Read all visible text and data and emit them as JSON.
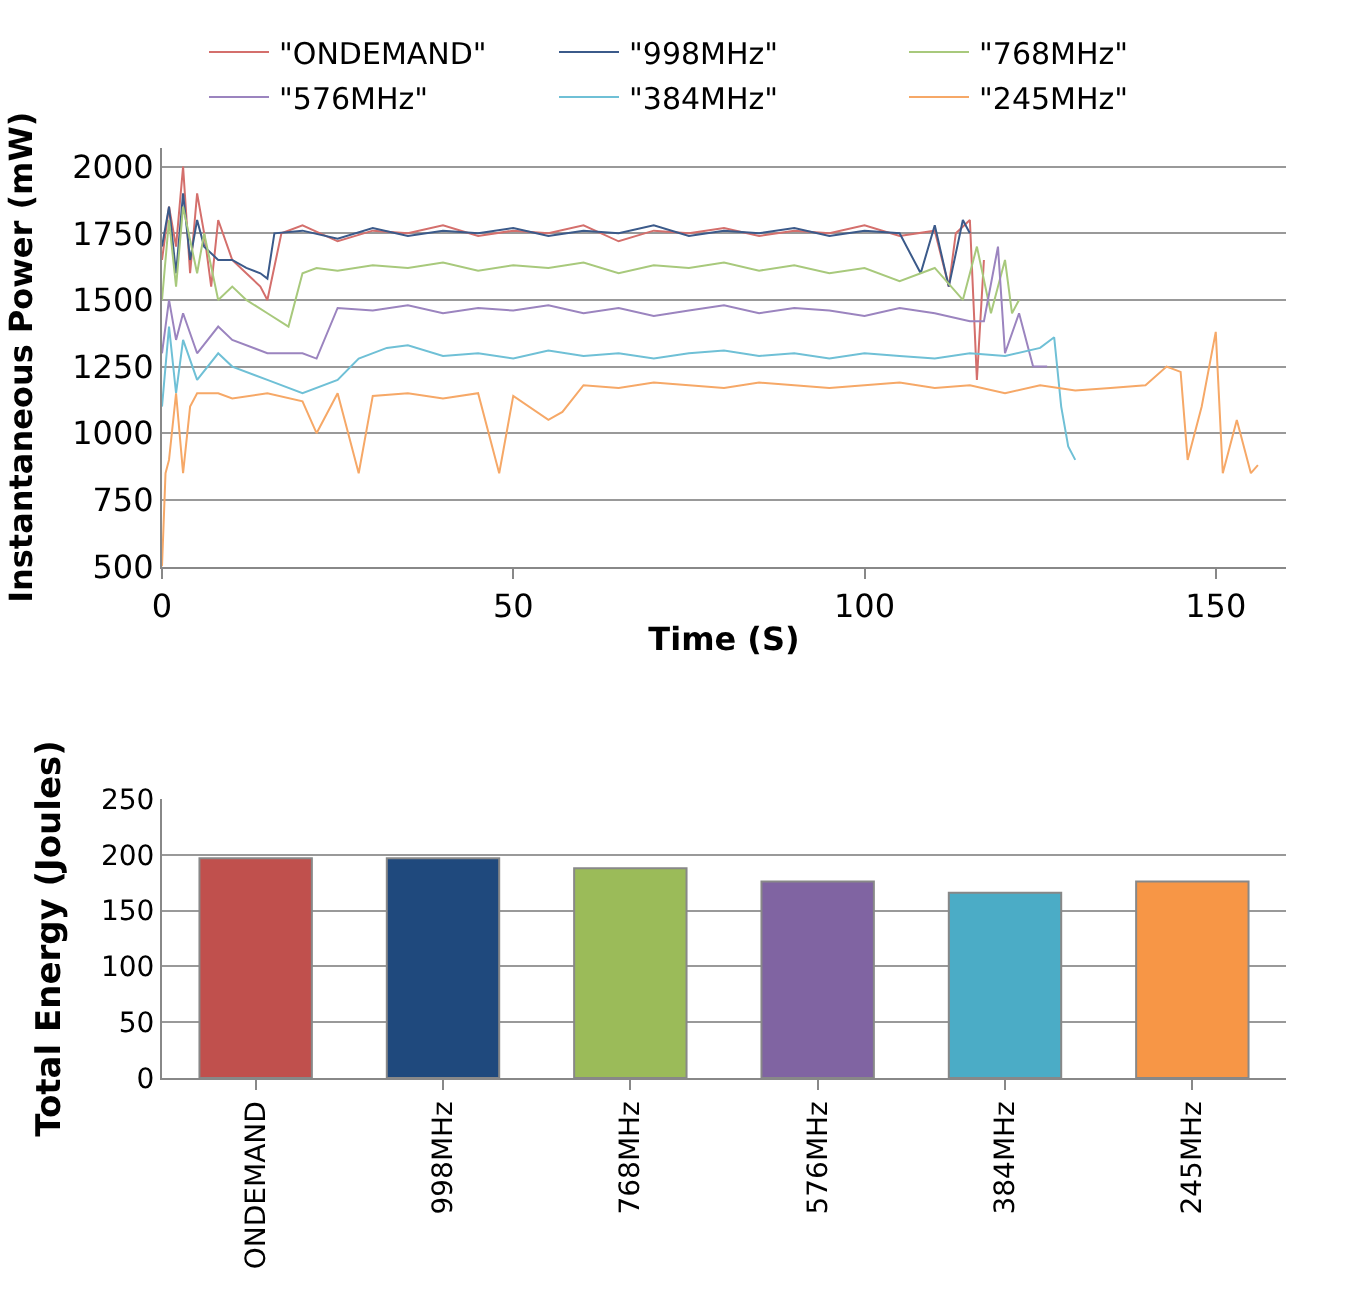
{
  "chart_data": [
    {
      "type": "line",
      "xlabel": "Time (S)",
      "ylabel": "Instantaneous Power (mW)",
      "xlim": [
        0,
        160
      ],
      "xticks": [
        0,
        50,
        100,
        150
      ],
      "ylim": [
        500,
        2070
      ],
      "yticks": [
        500,
        750,
        1000,
        1250,
        1500,
        1750,
        2000
      ],
      "grid": "y",
      "legend": "top",
      "series": [
        {
          "name": "\"ONDEMAND\"",
          "color": "#d46f6c",
          "x": [
            0,
            1,
            2,
            3,
            4,
            5,
            6,
            7,
            8,
            10,
            12,
            14,
            15,
            17,
            20,
            25,
            30,
            35,
            40,
            45,
            50,
            55,
            60,
            65,
            70,
            75,
            80,
            85,
            90,
            95,
            100,
            105,
            110,
            112,
            113,
            115,
            116,
            117
          ],
          "values": [
            1650,
            1850,
            1700,
            2000,
            1600,
            1900,
            1750,
            1550,
            1800,
            1650,
            1600,
            1550,
            1500,
            1750,
            1780,
            1720,
            1760,
            1750,
            1780,
            1740,
            1760,
            1750,
            1780,
            1720,
            1760,
            1750,
            1770,
            1740,
            1760,
            1750,
            1780,
            1740,
            1760,
            1550,
            1750,
            1800,
            1200,
            1650
          ]
        },
        {
          "name": "\"998MHz\"",
          "color": "#3b5a8a",
          "x": [
            0,
            1,
            2,
            3,
            4,
            5,
            6,
            8,
            10,
            12,
            14,
            15,
            16,
            20,
            25,
            30,
            35,
            40,
            45,
            50,
            55,
            60,
            65,
            70,
            75,
            80,
            85,
            90,
            95,
            100,
            105,
            108,
            110,
            112,
            114,
            115
          ],
          "values": [
            1700,
            1850,
            1600,
            1900,
            1650,
            1800,
            1700,
            1650,
            1650,
            1620,
            1600,
            1580,
            1750,
            1760,
            1730,
            1770,
            1740,
            1760,
            1750,
            1770,
            1740,
            1760,
            1750,
            1780,
            1740,
            1760,
            1750,
            1770,
            1740,
            1760,
            1750,
            1600,
            1780,
            1550,
            1800,
            1750
          ]
        },
        {
          "name": "\"768MHz\"",
          "color": "#a8c97c",
          "x": [
            0,
            1,
            2,
            3,
            5,
            6,
            8,
            10,
            12,
            15,
            18,
            20,
            22,
            25,
            30,
            35,
            40,
            45,
            50,
            55,
            60,
            65,
            70,
            75,
            80,
            85,
            90,
            95,
            100,
            105,
            110,
            114,
            116,
            118,
            120,
            121,
            122
          ],
          "values": [
            1500,
            1800,
            1550,
            1850,
            1600,
            1750,
            1500,
            1550,
            1500,
            1450,
            1400,
            1600,
            1620,
            1610,
            1630,
            1620,
            1640,
            1610,
            1630,
            1620,
            1640,
            1600,
            1630,
            1620,
            1640,
            1610,
            1630,
            1600,
            1620,
            1570,
            1620,
            1500,
            1700,
            1450,
            1650,
            1450,
            1500
          ]
        },
        {
          "name": "\"576MHz\"",
          "color": "#9b84bf",
          "x": [
            0,
            1,
            2,
            3,
            5,
            8,
            10,
            15,
            20,
            22,
            25,
            30,
            35,
            40,
            45,
            50,
            55,
            60,
            65,
            70,
            75,
            80,
            85,
            90,
            95,
            100,
            105,
            110,
            115,
            117,
            119,
            120,
            122,
            124,
            126
          ],
          "values": [
            1300,
            1500,
            1350,
            1450,
            1300,
            1400,
            1350,
            1300,
            1300,
            1280,
            1470,
            1460,
            1480,
            1450,
            1470,
            1460,
            1480,
            1450,
            1470,
            1440,
            1460,
            1480,
            1450,
            1470,
            1460,
            1440,
            1470,
            1450,
            1420,
            1420,
            1700,
            1300,
            1450,
            1250,
            1250
          ]
        },
        {
          "name": "\"384MHz\"",
          "color": "#6fc0d6",
          "x": [
            0,
            1,
            2,
            3,
            5,
            8,
            10,
            15,
            20,
            25,
            28,
            32,
            35,
            40,
            45,
            50,
            55,
            60,
            65,
            70,
            75,
            80,
            85,
            90,
            95,
            100,
            105,
            110,
            115,
            120,
            125,
            127,
            128,
            129,
            130
          ],
          "values": [
            1100,
            1400,
            1150,
            1350,
            1200,
            1300,
            1250,
            1200,
            1150,
            1200,
            1280,
            1320,
            1330,
            1290,
            1300,
            1280,
            1310,
            1290,
            1300,
            1280,
            1300,
            1310,
            1290,
            1300,
            1280,
            1300,
            1290,
            1280,
            1300,
            1290,
            1320,
            1360,
            1100,
            950,
            900
          ]
        },
        {
          "name": "\"245MHz\"",
          "color": "#f6a867",
          "x": [
            0,
            0.5,
            1,
            2,
            3,
            4,
            5,
            8,
            10,
            15,
            20,
            22,
            25,
            28,
            30,
            35,
            40,
            45,
            48,
            50,
            55,
            57,
            60,
            65,
            70,
            75,
            80,
            85,
            90,
            95,
            100,
            105,
            110,
            115,
            120,
            125,
            130,
            135,
            140,
            143,
            145,
            146,
            148,
            150,
            151,
            153,
            155,
            156
          ],
          "values": [
            500,
            850,
            900,
            1150,
            850,
            1100,
            1150,
            1150,
            1130,
            1150,
            1120,
            1000,
            1150,
            850,
            1140,
            1150,
            1130,
            1150,
            850,
            1140,
            1050,
            1080,
            1180,
            1170,
            1190,
            1180,
            1170,
            1190,
            1180,
            1170,
            1180,
            1190,
            1170,
            1180,
            1150,
            1180,
            1160,
            1170,
            1180,
            1250,
            1230,
            900,
            1100,
            1380,
            850,
            1050,
            850,
            880
          ]
        }
      ]
    },
    {
      "type": "bar",
      "ylabel": "Total Energy (Joules)",
      "categories": [
        "ONDEMAND",
        "998MHz",
        "768MHz",
        "576MHz",
        "384MHz",
        "245MHz"
      ],
      "values": [
        197,
        197,
        188,
        176,
        166,
        176
      ],
      "colors": [
        "#c0504d",
        "#1f497d",
        "#9bbb59",
        "#8064a2",
        "#4bacc6",
        "#f79646"
      ],
      "ylim": [
        0,
        250
      ],
      "yticks": [
        0,
        50,
        100,
        150,
        200,
        250
      ],
      "grid": "y"
    }
  ]
}
